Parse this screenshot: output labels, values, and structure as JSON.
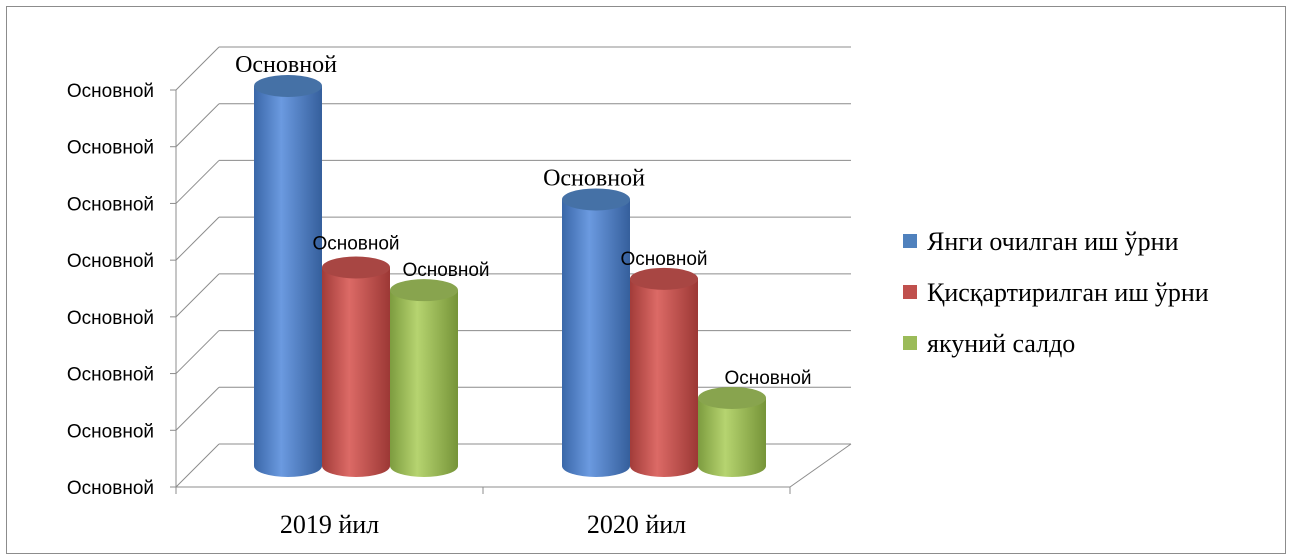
{
  "chart_data": {
    "type": "bar",
    "title": "",
    "xlabel": "",
    "ylabel": "",
    "categories": [
      "2019 йил",
      "2020 йил"
    ],
    "y_tick_labels": [
      "Основной",
      "Основной",
      "Основной",
      "Основной",
      "Основной",
      "Основной",
      "Основной",
      "Основной"
    ],
    "series": [
      {
        "name": "Янги очилган иш ўрни",
        "color": "#4f81bd",
        "values": [
          6.7,
          4.7
        ],
        "data_labels": [
          "Основной",
          "Основной"
        ]
      },
      {
        "name": "Қисқартирилган иш ўрни",
        "color": "#c0504d",
        "values": [
          3.5,
          3.3
        ],
        "data_labels": [
          "Основной",
          "Основной"
        ]
      },
      {
        "name": "якуний салдо",
        "color": "#9bbb59",
        "values": [
          3.1,
          1.2
        ],
        "data_labels": [
          "Основной",
          "Основной"
        ]
      }
    ],
    "ylim": [
      0,
      7
    ],
    "grid": true,
    "legend_position": "right"
  }
}
